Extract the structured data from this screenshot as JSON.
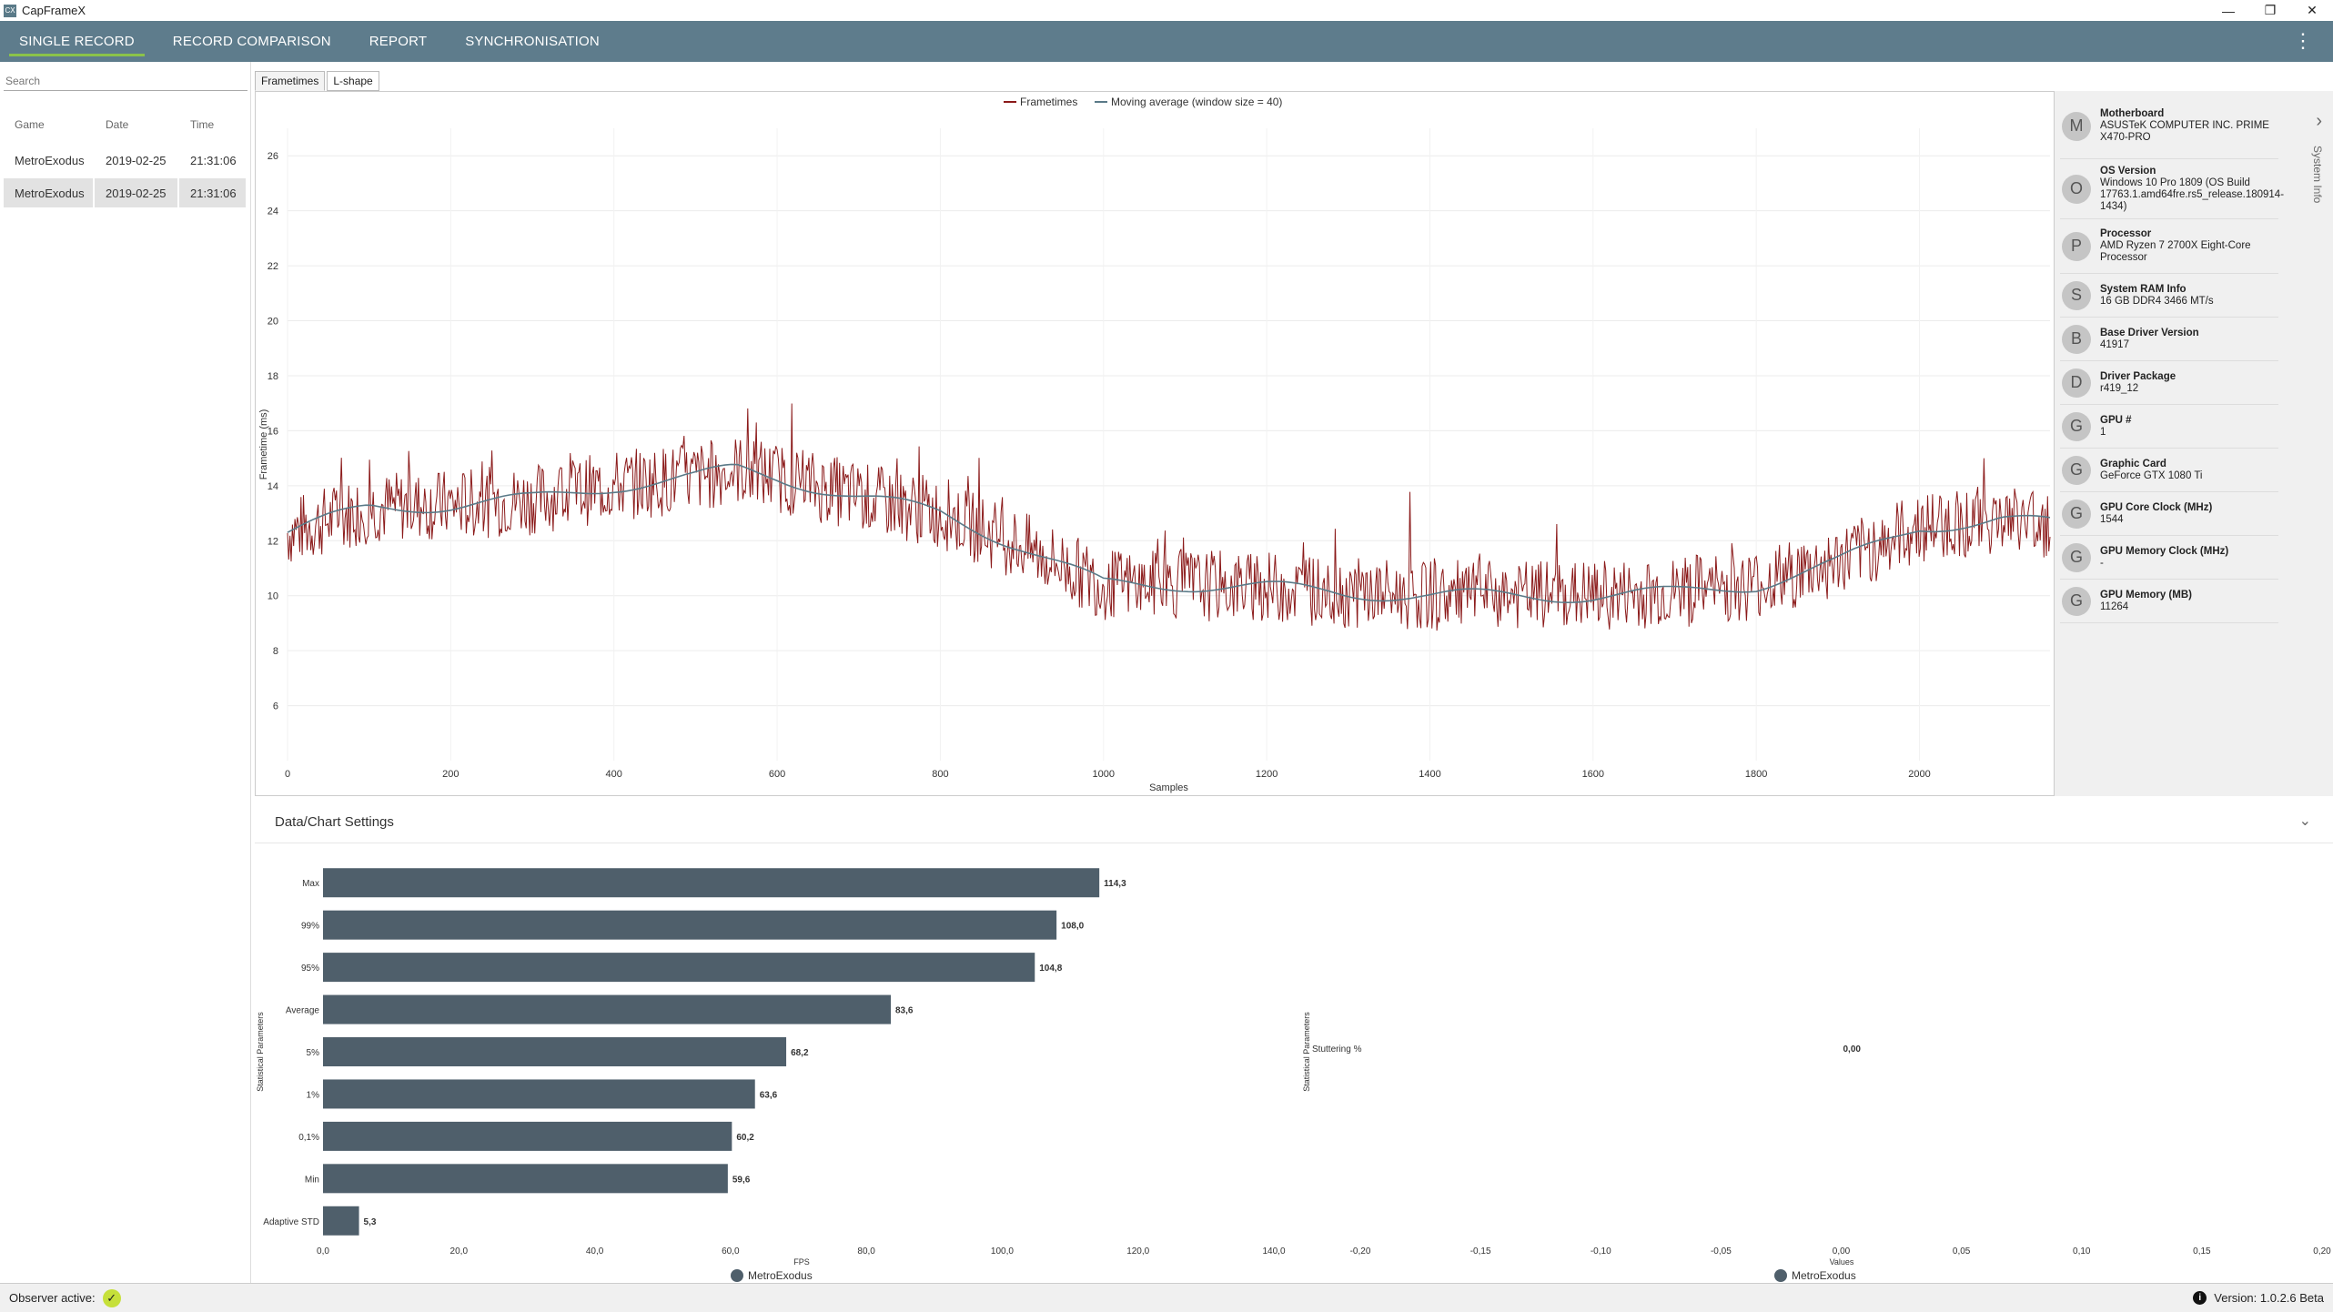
{
  "window": {
    "title": "CapFrameX",
    "app_icon": "CX",
    "minimize": "—",
    "restore": "❐",
    "close": "✕"
  },
  "menu": {
    "tabs": [
      "SINGLE RECORD",
      "RECORD COMPARISON",
      "REPORT",
      "SYNCHRONISATION"
    ],
    "active": 0,
    "kebab": "⋮"
  },
  "sidebar": {
    "search_placeholder": "Search",
    "columns": [
      "Game",
      "Date",
      "Time"
    ],
    "rows": [
      {
        "game": "MetroExodus",
        "date": "2019-02-25",
        "time": "21:31:06"
      },
      {
        "game": "MetroExodus",
        "date": "2019-02-25",
        "time": "21:31:06"
      }
    ]
  },
  "chart_tabs": [
    "Frametimes",
    "L-shape"
  ],
  "system_info": {
    "tab_label": "System Info",
    "items": [
      {
        "letter": "M",
        "title": "Motherboard",
        "value": "ASUSTeK COMPUTER INC. PRIME X470-PRO"
      },
      {
        "letter": "O",
        "title": "OS Version",
        "value": "Windows 10 Pro 1809 (OS Build 17763.1.amd64fre.rs5_release.180914-1434)"
      },
      {
        "letter": "P",
        "title": "Processor",
        "value": "AMD Ryzen 7 2700X Eight-Core Processor"
      },
      {
        "letter": "S",
        "title": "System RAM Info",
        "value": "16 GB DDR4 3466 MT/s"
      },
      {
        "letter": "B",
        "title": "Base Driver Version",
        "value": "41917"
      },
      {
        "letter": "D",
        "title": "Driver Package",
        "value": "r419_12"
      },
      {
        "letter": "G",
        "title": "GPU #",
        "value": "1"
      },
      {
        "letter": "G",
        "title": "Graphic Card",
        "value": "GeForce GTX 1080 Ti"
      },
      {
        "letter": "G",
        "title": "GPU Core Clock (MHz)",
        "value": "1544"
      },
      {
        "letter": "G",
        "title": "GPU Memory Clock (MHz)",
        "value": "-"
      },
      {
        "letter": "G",
        "title": "GPU Memory (MB)",
        "value": "11264"
      }
    ]
  },
  "settings": {
    "label": "Data/Chart Settings",
    "chevron": "⌄"
  },
  "status": {
    "observer_label": "Observer active:",
    "version": "Version: 1.0.2.6 Beta",
    "info_icon": "i"
  },
  "colors": {
    "accent": "#8bc34a",
    "menubar": "#5e7c8c",
    "frametime_line": "#8b1a1a",
    "moving_avg": "#5a7a88",
    "bar": "#4f5f6b"
  },
  "chart_data": [
    {
      "type": "line",
      "xlabel": "Samples",
      "ylabel": "Frametime (ms)",
      "xlim": [
        0,
        2160
      ],
      "ylim": [
        4,
        27
      ],
      "xticks": [
        0,
        200,
        400,
        600,
        800,
        1000,
        1200,
        1400,
        1600,
        1800,
        2000
      ],
      "yticks": [
        6,
        8,
        10,
        12,
        14,
        16,
        18,
        20,
        22,
        24,
        26
      ],
      "grid": true,
      "legend_position": "top-center",
      "series": [
        {
          "name": "Frametimes",
          "color": "#8b1a1a",
          "kind": "noisy",
          "x": [
            0,
            100,
            200,
            300,
            400,
            500,
            550,
            600,
            700,
            800,
            900,
            1000,
            1100,
            1200,
            1300,
            1400,
            1500,
            1600,
            1700,
            1800,
            1900,
            2000,
            2100,
            2160
          ],
          "y": [
            12.3,
            13.2,
            13.3,
            13.5,
            14.0,
            14.3,
            14.6,
            14.3,
            13.6,
            13.0,
            11.8,
            10.4,
            10.4,
            10.3,
            10.1,
            10.0,
            10.0,
            10.0,
            10.1,
            10.4,
            11.2,
            12.5,
            12.8,
            12.6
          ],
          "amplitude": 1.3
        },
        {
          "name": "Moving average (window size = 40)",
          "color": "#5a7a88",
          "kind": "smooth",
          "x": [
            0,
            100,
            200,
            300,
            400,
            500,
            550,
            600,
            700,
            800,
            900,
            1000,
            1100,
            1200,
            1300,
            1400,
            1500,
            1600,
            1700,
            1800,
            1900,
            2000,
            2100,
            2160
          ],
          "y": [
            12.3,
            13.2,
            13.3,
            13.5,
            14.0,
            14.3,
            14.6,
            14.3,
            13.6,
            13.0,
            11.8,
            10.4,
            10.4,
            10.3,
            10.1,
            10.0,
            10.0,
            10.0,
            10.1,
            10.4,
            11.2,
            12.5,
            12.8,
            12.6
          ]
        }
      ]
    },
    {
      "type": "bar",
      "orientation": "horizontal",
      "xlabel": "FPS",
      "ylabel": "Statistical Parameters",
      "categories": [
        "Max",
        "99%",
        "95%",
        "Average",
        "5%",
        "1%",
        "0,1%",
        "Min",
        "Adaptive STD"
      ],
      "values": [
        114.3,
        108.0,
        104.8,
        83.6,
        68.2,
        63.6,
        60.2,
        59.6,
        5.3
      ],
      "value_labels": [
        "114,3",
        "108,0",
        "104,8",
        "83,6",
        "68,2",
        "63,6",
        "60,2",
        "59,6",
        "5,3"
      ],
      "xlim": [
        0,
        140
      ],
      "xtick_labels": [
        "0,0",
        "20,0",
        "40,0",
        "60,0",
        "80,0",
        "100,0",
        "120,0",
        "140,0"
      ],
      "series": [
        {
          "name": "MetroExodus",
          "values": [
            114.3,
            108.0,
            104.8,
            83.6,
            68.2,
            63.6,
            60.2,
            59.6,
            5.3
          ]
        }
      ]
    },
    {
      "type": "bar",
      "orientation": "horizontal",
      "xlabel": "Values",
      "ylabel": "Statistical Parameters",
      "categories": [
        "Stuttering %"
      ],
      "values": [
        0.0
      ],
      "value_labels": [
        "0,00"
      ],
      "xlim": [
        -0.2,
        0.2
      ],
      "xtick_labels": [
        "-0,20",
        "-0,15",
        "-0,10",
        "-0,05",
        "0,00",
        "0,05",
        "0,10",
        "0,15",
        "0,20"
      ],
      "series": [
        {
          "name": "MetroExodus",
          "values": [
            0.0
          ]
        }
      ]
    }
  ]
}
